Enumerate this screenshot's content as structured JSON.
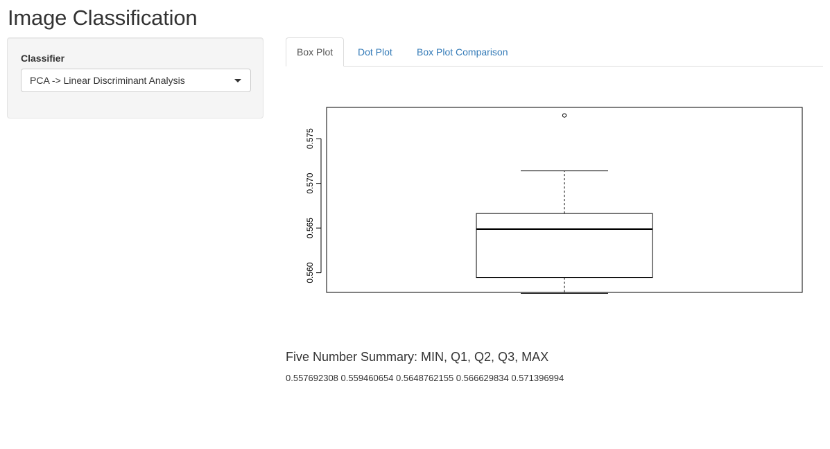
{
  "page": {
    "title": "Image Classification"
  },
  "sidebar": {
    "classifier_label": "Classifier",
    "classifier_selected": "PCA -> Linear Discriminant Analysis"
  },
  "tabs": [
    {
      "label": "Box Plot",
      "active": true
    },
    {
      "label": "Dot Plot",
      "active": false
    },
    {
      "label": "Box Plot Comparison",
      "active": false
    }
  ],
  "colors": {
    "link": "#337ab7",
    "active_tab_text": "#555555",
    "panel_bg": "#f5f5f5"
  },
  "icons": {
    "select_caret": "chevron-down-icon"
  },
  "chart_data": {
    "type": "box",
    "orientation": "vertical",
    "ylim": [
      0.5578,
      0.5785
    ],
    "ytick_labels": [
      "0.560",
      "0.565",
      "0.570",
      "0.575"
    ],
    "yticks": [
      0.56,
      0.565,
      0.57,
      0.575
    ],
    "min": 0.557692308,
    "q1": 0.559460654,
    "median": 0.5648762155,
    "q3": 0.566629834,
    "max": 0.571396994,
    "outliers": [
      0.5776
    ],
    "title": "",
    "xlabel": "",
    "ylabel": "",
    "grid": false
  },
  "summary": {
    "title": "Five Number Summary: MIN, Q1, Q2, Q3, MAX",
    "values": "0.557692308 0.559460654 0.5648762155 0.566629834 0.571396994"
  }
}
